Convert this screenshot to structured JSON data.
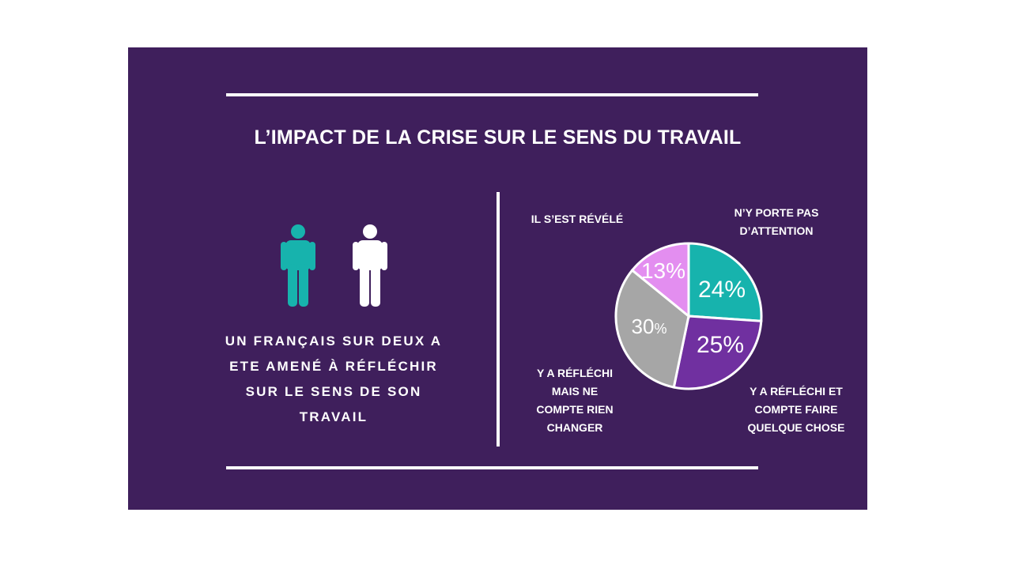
{
  "colors": {
    "panel": "#3f1f5c",
    "teal": "#17b3ad",
    "purple": "#7030a0",
    "gray": "#a6a6a6",
    "pink": "#e38ef0",
    "white": "#ffffff"
  },
  "title": "L’IMPACT DE LA CRISE SUR LE SENS DU TRAVAIL",
  "icons": [
    "person-teal-icon",
    "person-white-icon"
  ],
  "caption_lines": [
    "UN FRANÇAIS SUR DEUX A",
    "ETE AMENÉ À RÉFLÉCHIR",
    "SUR LE SENS DE SON",
    "TRAVAIL"
  ],
  "chart_data": {
    "type": "pie",
    "title": "",
    "slices": [
      {
        "label_lines": [
          "N’Y PORTE PAS",
          "D’ATTENTION"
        ],
        "value": 24,
        "value_label": "24%",
        "color": "#17b3ad"
      },
      {
        "label_lines": [
          "Y A RÉFLÉCHI ET",
          "COMPTE FAIRE",
          "QUELQUE CHOSE"
        ],
        "value": 25,
        "value_label": "25%",
        "color": "#7030a0"
      },
      {
        "label_lines": [
          "Y A RÉFLÉCHI",
          "MAIS NE",
          "COMPTE RIEN",
          "CHANGER"
        ],
        "value": 30,
        "value_label": "30%",
        "color": "#a6a6a6"
      },
      {
        "label_lines": [
          "IL S’EST RÉVÉLÉ"
        ],
        "value": 13,
        "value_label": "13%",
        "color": "#e38ef0"
      }
    ]
  }
}
